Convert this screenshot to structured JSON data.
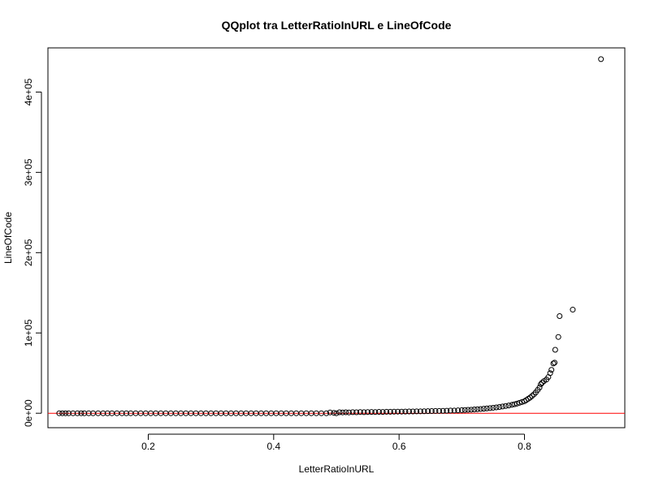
{
  "chart_data": {
    "type": "scatter",
    "title": "QQplot tra LetterRatioInURL e LineOfCode",
    "xlabel": "LetterRatioInURL",
    "ylabel": "LineOfCode",
    "xlim": [
      0.04,
      0.96
    ],
    "ylim": [
      -18000,
      455000
    ],
    "xticks": [
      {
        "value": 0.2,
        "label": "0.2"
      },
      {
        "value": 0.4,
        "label": "0.4"
      },
      {
        "value": 0.6,
        "label": "0.6"
      },
      {
        "value": 0.8,
        "label": "0.8"
      }
    ],
    "yticks": [
      {
        "value": 0,
        "label": "0e+00"
      },
      {
        "value": 100000,
        "label": "1e+05"
      },
      {
        "value": 200000,
        "label": "2e+05"
      },
      {
        "value": 300000,
        "label": "3e+05"
      },
      {
        "value": 400000,
        "label": "4e+05"
      }
    ],
    "reference_line": {
      "y": 0,
      "color": "#ff0000"
    },
    "marker": "open-circle",
    "point_color": "#000000",
    "grid": false,
    "points": [
      [
        0.058,
        0
      ],
      [
        0.063,
        0
      ],
      [
        0.068,
        0
      ],
      [
        0.073,
        0
      ],
      [
        0.08,
        0
      ],
      [
        0.087,
        0
      ],
      [
        0.093,
        0
      ],
      [
        0.098,
        0
      ],
      [
        0.105,
        0
      ],
      [
        0.112,
        0
      ],
      [
        0.12,
        0
      ],
      [
        0.128,
        0
      ],
      [
        0.135,
        0
      ],
      [
        0.142,
        0
      ],
      [
        0.15,
        0
      ],
      [
        0.158,
        0
      ],
      [
        0.165,
        0
      ],
      [
        0.172,
        0
      ],
      [
        0.18,
        0
      ],
      [
        0.188,
        0
      ],
      [
        0.196,
        0
      ],
      [
        0.204,
        0
      ],
      [
        0.212,
        0
      ],
      [
        0.22,
        0
      ],
      [
        0.228,
        0
      ],
      [
        0.236,
        0
      ],
      [
        0.244,
        0
      ],
      [
        0.252,
        0
      ],
      [
        0.26,
        0
      ],
      [
        0.268,
        0
      ],
      [
        0.276,
        0
      ],
      [
        0.284,
        0
      ],
      [
        0.292,
        0
      ],
      [
        0.3,
        0
      ],
      [
        0.308,
        0
      ],
      [
        0.316,
        0
      ],
      [
        0.324,
        0
      ],
      [
        0.332,
        0
      ],
      [
        0.34,
        0
      ],
      [
        0.348,
        0
      ],
      [
        0.356,
        0
      ],
      [
        0.364,
        0
      ],
      [
        0.372,
        0
      ],
      [
        0.38,
        0
      ],
      [
        0.388,
        0
      ],
      [
        0.396,
        0
      ],
      [
        0.404,
        0
      ],
      [
        0.412,
        0
      ],
      [
        0.42,
        0
      ],
      [
        0.428,
        0
      ],
      [
        0.436,
        0
      ],
      [
        0.444,
        0
      ],
      [
        0.452,
        0
      ],
      [
        0.46,
        0
      ],
      [
        0.468,
        0
      ],
      [
        0.476,
        0
      ],
      [
        0.484,
        0
      ],
      [
        0.49,
        1000
      ],
      [
        0.496,
        500
      ],
      [
        0.5,
        0
      ],
      [
        0.505,
        1200
      ],
      [
        0.51,
        1000
      ],
      [
        0.515,
        1200
      ],
      [
        0.52,
        1000
      ],
      [
        0.526,
        1300
      ],
      [
        0.532,
        1200
      ],
      [
        0.538,
        1500
      ],
      [
        0.544,
        1300
      ],
      [
        0.55,
        1500
      ],
      [
        0.556,
        1600
      ],
      [
        0.562,
        1500
      ],
      [
        0.568,
        1700
      ],
      [
        0.574,
        1600
      ],
      [
        0.58,
        1800
      ],
      [
        0.586,
        1800
      ],
      [
        0.592,
        1900
      ],
      [
        0.598,
        2000
      ],
      [
        0.604,
        2000
      ],
      [
        0.61,
        2100
      ],
      [
        0.616,
        2200
      ],
      [
        0.622,
        2200
      ],
      [
        0.628,
        2300
      ],
      [
        0.634,
        2400
      ],
      [
        0.64,
        2500
      ],
      [
        0.646,
        2600
      ],
      [
        0.652,
        2700
      ],
      [
        0.658,
        2800
      ],
      [
        0.664,
        2900
      ],
      [
        0.67,
        3000
      ],
      [
        0.676,
        3100
      ],
      [
        0.682,
        3300
      ],
      [
        0.688,
        3400
      ],
      [
        0.694,
        3600
      ],
      [
        0.7,
        3800
      ],
      [
        0.705,
        4000
      ],
      [
        0.71,
        4200
      ],
      [
        0.715,
        4400
      ],
      [
        0.72,
        4700
      ],
      [
        0.725,
        5000
      ],
      [
        0.73,
        5300
      ],
      [
        0.735,
        5600
      ],
      [
        0.74,
        6000
      ],
      [
        0.745,
        6400
      ],
      [
        0.75,
        6800
      ],
      [
        0.755,
        7300
      ],
      [
        0.76,
        7800
      ],
      [
        0.765,
        8400
      ],
      [
        0.77,
        9000
      ],
      [
        0.775,
        9700
      ],
      [
        0.78,
        10500
      ],
      [
        0.784,
        11200
      ],
      [
        0.788,
        12000
      ],
      [
        0.792,
        13000
      ],
      [
        0.796,
        14000
      ],
      [
        0.8,
        15000
      ],
      [
        0.803,
        16500
      ],
      [
        0.806,
        18000
      ],
      [
        0.809,
        19500
      ],
      [
        0.812,
        21500
      ],
      [
        0.815,
        23500
      ],
      [
        0.818,
        26000
      ],
      [
        0.821,
        29000
      ],
      [
        0.824,
        32000
      ],
      [
        0.826,
        36000
      ],
      [
        0.828,
        38000
      ],
      [
        0.831,
        40000
      ],
      [
        0.835,
        42000
      ],
      [
        0.838,
        45000
      ],
      [
        0.841,
        50000
      ],
      [
        0.843,
        54000
      ],
      [
        0.846,
        62000
      ],
      [
        0.848,
        63000
      ],
      [
        0.849,
        79000
      ],
      [
        0.854,
        95000
      ],
      [
        0.856,
        121000
      ],
      [
        0.877,
        129000
      ],
      [
        0.922,
        441000
      ]
    ]
  }
}
